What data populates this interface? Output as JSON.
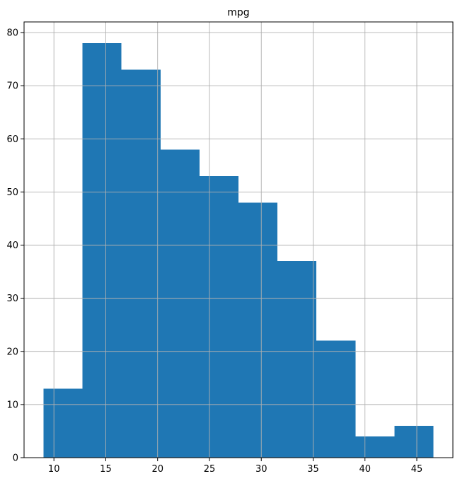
{
  "chart_data": {
    "type": "bar",
    "title": "mpg",
    "xlabel": "",
    "ylabel": "",
    "bin_edges": [
      9.0,
      12.76,
      16.52,
      20.28,
      24.04,
      27.8,
      31.56,
      35.32,
      39.08,
      42.84,
      46.6
    ],
    "values": [
      13,
      78,
      73,
      58,
      53,
      48,
      37,
      22,
      4,
      6
    ],
    "xlim": [
      7.12,
      48.48
    ],
    "ylim": [
      0,
      82
    ],
    "xticks": [
      10,
      15,
      20,
      25,
      30,
      35,
      40,
      45
    ],
    "yticks": [
      0,
      10,
      20,
      30,
      40,
      50,
      60,
      70,
      80
    ],
    "grid": true,
    "legend": "none",
    "bar_color": "#1f77b4",
    "grid_color": "#b0b0b0"
  }
}
